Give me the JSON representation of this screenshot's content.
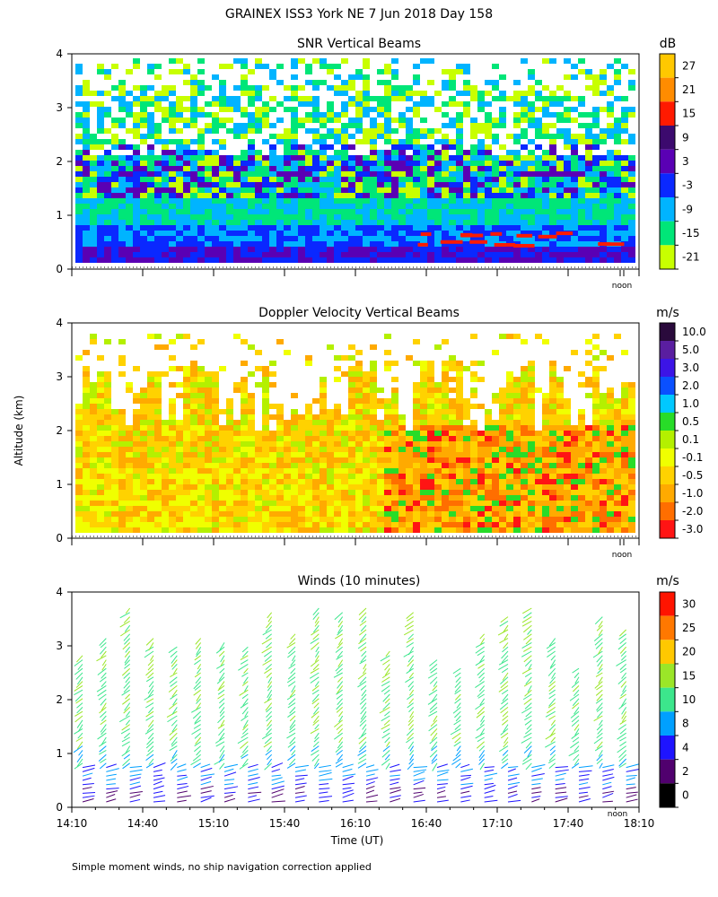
{
  "page": {
    "title": "GRAINEX ISS3 York NE   7 Jun 2018 Day 158",
    "y_axis_label": "Altitude (km)",
    "x_axis_label": "Time (UT)",
    "footnote": "Simple moment winds, no ship navigation correction applied",
    "noon_label": "noon"
  },
  "chart_data": [
    {
      "type": "heatmap",
      "title": "SNR Vertical Beams",
      "ylabel": "Altitude (km)",
      "ylim": [
        0,
        4
      ],
      "yticks": [
        "0",
        "1",
        "2",
        "3",
        "4"
      ],
      "colorbar_unit": "dB",
      "colorbar_labels": [
        "27",
        "21",
        "15",
        "9",
        "3",
        "-3",
        "-9",
        "-15",
        "-21"
      ],
      "colorbar_colors": [
        "#ffc800",
        "#ff8c00",
        "#ff1a00",
        "#3c0a6e",
        "#5a00b4",
        "#0a28ff",
        "#00b4ff",
        "#00e678",
        "#c8ff00"
      ],
      "grid": false
    },
    {
      "type": "heatmap",
      "title": "Doppler Velocity Vertical Beams",
      "ylabel": "Altitude (km)",
      "ylim": [
        0,
        4
      ],
      "yticks": [
        "0",
        "1",
        "2",
        "3",
        "4"
      ],
      "colorbar_unit": "m/s",
      "colorbar_labels": [
        "10.0",
        "5.0",
        "3.0",
        "2.0",
        "1.0",
        "0.5",
        "0.1",
        "-0.1",
        "-0.5",
        "-1.0",
        "-2.0",
        "-3.0"
      ],
      "colorbar_colors": [
        "#2a0a3c",
        "#5a1ea0",
        "#3c14e6",
        "#0a50ff",
        "#00c8ff",
        "#28dc28",
        "#b4f000",
        "#f0ff00",
        "#ffd200",
        "#ffaa00",
        "#ff6e00",
        "#ff1414"
      ],
      "grid": false
    },
    {
      "type": "scatter",
      "title": "Winds (10 minutes)",
      "ylabel": "Altitude (km)",
      "xlabel": "Time (UT)",
      "ylim": [
        0,
        4
      ],
      "yticks": [
        "0",
        "1",
        "2",
        "3",
        "4"
      ],
      "xticks": [
        "14:10",
        "14:40",
        "15:10",
        "15:40",
        "16:10",
        "16:40",
        "17:10",
        "17:40",
        "18:10"
      ],
      "colorbar_unit": "m/s",
      "colorbar_labels": [
        "30",
        "25",
        "20",
        "15",
        "10",
        "8",
        "4",
        "2",
        "0"
      ],
      "colorbar_colors": [
        "#ff1400",
        "#ff7800",
        "#ffc800",
        "#9be628",
        "#3ce68c",
        "#00a0ff",
        "#1e14ff",
        "#50006e",
        "#000000"
      ],
      "profile_times": [
        "14:10",
        "14:20",
        "14:30",
        "14:40",
        "14:50",
        "15:00",
        "15:10",
        "15:20",
        "15:30",
        "15:40",
        "15:50",
        "16:00",
        "16:10",
        "16:20",
        "16:30",
        "16:40",
        "16:50",
        "17:00",
        "17:10",
        "17:20",
        "17:30",
        "17:40",
        "17:50",
        "18:00"
      ],
      "grid": false
    }
  ]
}
